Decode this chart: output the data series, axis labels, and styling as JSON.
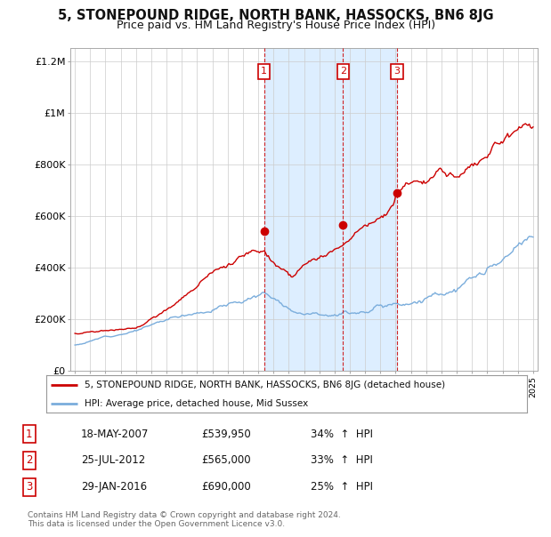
{
  "title": "5, STONEPOUND RIDGE, NORTH BANK, HASSOCKS, BN6 8JG",
  "subtitle": "Price paid vs. HM Land Registry's House Price Index (HPI)",
  "title_fontsize": 10.5,
  "subtitle_fontsize": 9,
  "background_color": "#ffffff",
  "plot_bg_color": "#ffffff",
  "grid_color": "#cccccc",
  "line_color_red": "#cc0000",
  "line_color_blue": "#7aaddc",
  "shading_color": "#ddeeff",
  "ylim": [
    0,
    1250000
  ],
  "yticks": [
    0,
    200000,
    400000,
    600000,
    800000,
    1000000,
    1200000
  ],
  "ytick_labels": [
    "£0",
    "£200K",
    "£400K",
    "£600K",
    "£800K",
    "£1M",
    "£1.2M"
  ],
  "sales": [
    {
      "year": 2007.38,
      "price": 539950,
      "label": "1"
    },
    {
      "year": 2012.56,
      "price": 565000,
      "label": "2"
    },
    {
      "year": 2016.08,
      "price": 690000,
      "label": "3"
    }
  ],
  "sale_table": [
    {
      "num": "1",
      "date": "18-MAY-2007",
      "price": "£539,950",
      "pct": "34%",
      "arrow": "↑",
      "text": "HPI"
    },
    {
      "num": "2",
      "date": "25-JUL-2012",
      "price": "£565,000",
      "pct": "33%",
      "arrow": "↑",
      "text": "HPI"
    },
    {
      "num": "3",
      "date": "29-JAN-2016",
      "price": "£690,000",
      "pct": "25%",
      "arrow": "↑",
      "text": "HPI"
    }
  ],
  "legend_label_red": "5, STONEPOUND RIDGE, NORTH BANK, HASSOCKS, BN6 8JG (detached house)",
  "legend_label_blue": "HPI: Average price, detached house, Mid Sussex",
  "footnote": "Contains HM Land Registry data © Crown copyright and database right 2024.\nThis data is licensed under the Open Government Licence v3.0."
}
